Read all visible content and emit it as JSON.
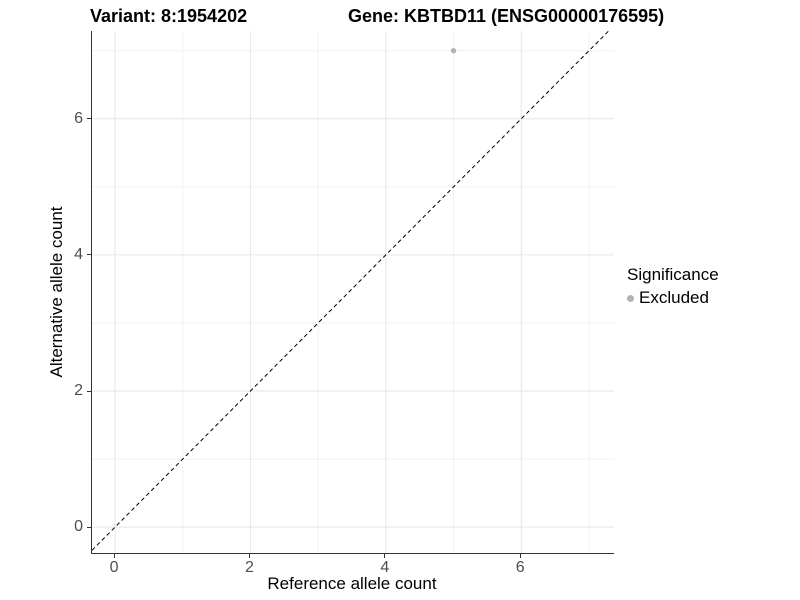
{
  "chart_data": {
    "type": "scatter",
    "titles": {
      "left": "Variant: 8:1954202",
      "right": "Gene: KBTBD11 (ENSG00000176595)"
    },
    "xlabel": "Reference allele count",
    "ylabel": "Alternative allele count",
    "xlim": [
      -0.34,
      7.37
    ],
    "ylim": [
      -0.38,
      7.29
    ],
    "x_major_ticks": [
      0,
      2,
      4,
      6
    ],
    "y_major_ticks": [
      0,
      2,
      4,
      6
    ],
    "x_minor_gridlines": [
      1,
      3,
      5,
      7
    ],
    "y_minor_gridlines": [
      1,
      3,
      5,
      7
    ],
    "grid": "major+minor",
    "identity_line": {
      "slope": 1,
      "intercept": 0,
      "style": "dashed",
      "color": "#000000"
    },
    "series": [
      {
        "name": "Excluded",
        "marker": "circle",
        "color": "#b3b3b3",
        "points": [
          {
            "x": 5,
            "y": 7
          }
        ]
      }
    ],
    "legend": {
      "position": "right",
      "title": "Significance",
      "entries": [
        {
          "label": "Excluded",
          "color": "#b3b3b3"
        }
      ]
    },
    "colors": {
      "grid_major": "#e6e6e6",
      "grid_minor": "#f1f1f1",
      "axis_line": "#333333",
      "tick_label": "#4d4d4d",
      "background": "#ffffff"
    }
  }
}
